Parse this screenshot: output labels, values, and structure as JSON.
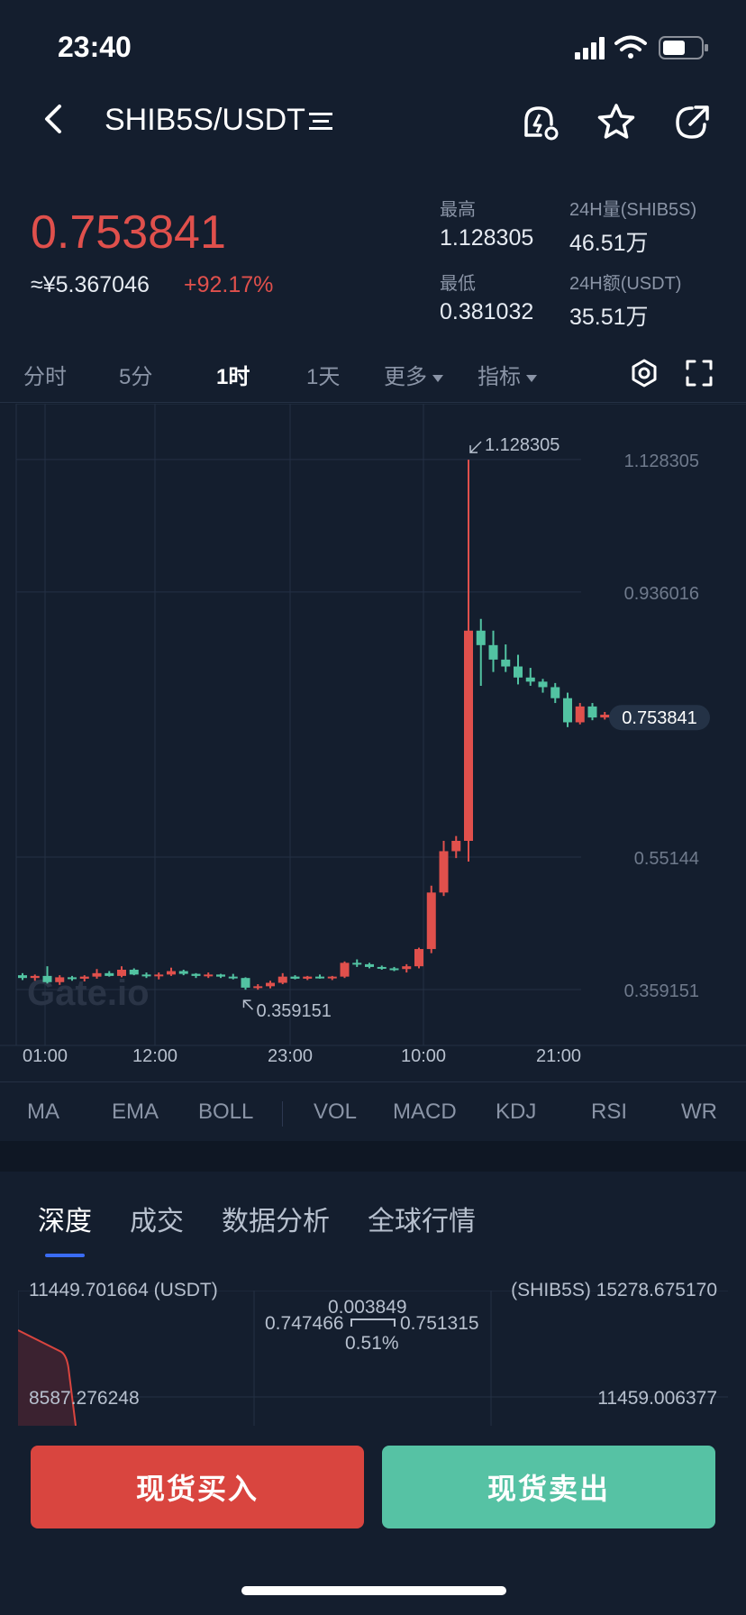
{
  "status_bar": {
    "time": "23:40"
  },
  "header": {
    "pair": "SHIB5S/USDT",
    "pair_suffix_icon": "menu-lines-icon"
  },
  "ticker": {
    "last_price": "0.753841",
    "cny_price": "≈¥5.367046",
    "change_pct": "+92.17%",
    "high_label": "最高",
    "high_value": "1.128305",
    "low_label": "最低",
    "low_value": "0.381032",
    "vol_label": "24H量(SHIB5S)",
    "vol_value": "46.51万",
    "amount_label": "24H额(USDT)",
    "amount_value": "35.51万"
  },
  "timeframes": [
    "分时",
    "5分",
    "1时",
    "1天",
    "更多",
    "指标"
  ],
  "active_timeframe": "1时",
  "chart_data": {
    "type": "candlestick",
    "watermark": "Gate.io",
    "x_ticks": [
      "01:00",
      "12:00",
      "23:00",
      "10:00",
      "21:00"
    ],
    "y_ticks": [
      "1.128305",
      "0.936016",
      "0.55144",
      "0.359151"
    ],
    "ylim": [
      0.32,
      1.17
    ],
    "max_label": "1.128305",
    "min_label": "0.359151",
    "current_price_label": "0.753841",
    "candles": [
      {
        "o": 0.38,
        "h": 0.383,
        "l": 0.373,
        "c": 0.376
      },
      {
        "o": 0.376,
        "h": 0.381,
        "l": 0.372,
        "c": 0.379
      },
      {
        "o": 0.379,
        "h": 0.393,
        "l": 0.368,
        "c": 0.37
      },
      {
        "o": 0.37,
        "h": 0.38,
        "l": 0.366,
        "c": 0.377
      },
      {
        "o": 0.377,
        "h": 0.379,
        "l": 0.372,
        "c": 0.375
      },
      {
        "o": 0.375,
        "h": 0.38,
        "l": 0.371,
        "c": 0.378
      },
      {
        "o": 0.378,
        "h": 0.389,
        "l": 0.375,
        "c": 0.383
      },
      {
        "o": 0.383,
        "h": 0.386,
        "l": 0.378,
        "c": 0.379
      },
      {
        "o": 0.379,
        "h": 0.393,
        "l": 0.377,
        "c": 0.388
      },
      {
        "o": 0.388,
        "h": 0.39,
        "l": 0.38,
        "c": 0.381
      },
      {
        "o": 0.381,
        "h": 0.384,
        "l": 0.376,
        "c": 0.379
      },
      {
        "o": 0.379,
        "h": 0.384,
        "l": 0.374,
        "c": 0.381
      },
      {
        "o": 0.381,
        "h": 0.391,
        "l": 0.379,
        "c": 0.386
      },
      {
        "o": 0.386,
        "h": 0.388,
        "l": 0.38,
        "c": 0.382
      },
      {
        "o": 0.382,
        "h": 0.383,
        "l": 0.376,
        "c": 0.379
      },
      {
        "o": 0.379,
        "h": 0.384,
        "l": 0.376,
        "c": 0.381
      },
      {
        "o": 0.381,
        "h": 0.382,
        "l": 0.376,
        "c": 0.378
      },
      {
        "o": 0.378,
        "h": 0.382,
        "l": 0.374,
        "c": 0.376
      },
      {
        "o": 0.376,
        "h": 0.377,
        "l": 0.359,
        "c": 0.362
      },
      {
        "o": 0.362,
        "h": 0.367,
        "l": 0.359,
        "c": 0.364
      },
      {
        "o": 0.364,
        "h": 0.372,
        "l": 0.361,
        "c": 0.369
      },
      {
        "o": 0.369,
        "h": 0.383,
        "l": 0.367,
        "c": 0.378
      },
      {
        "o": 0.378,
        "h": 0.38,
        "l": 0.374,
        "c": 0.375
      },
      {
        "o": 0.375,
        "h": 0.379,
        "l": 0.373,
        "c": 0.378
      },
      {
        "o": 0.378,
        "h": 0.381,
        "l": 0.375,
        "c": 0.376
      },
      {
        "o": 0.376,
        "h": 0.379,
        "l": 0.373,
        "c": 0.378
      },
      {
        "o": 0.378,
        "h": 0.4,
        "l": 0.376,
        "c": 0.398
      },
      {
        "o": 0.398,
        "h": 0.403,
        "l": 0.392,
        "c": 0.396
      },
      {
        "o": 0.396,
        "h": 0.398,
        "l": 0.39,
        "c": 0.392
      },
      {
        "o": 0.392,
        "h": 0.394,
        "l": 0.388,
        "c": 0.39
      },
      {
        "o": 0.39,
        "h": 0.392,
        "l": 0.386,
        "c": 0.389
      },
      {
        "o": 0.389,
        "h": 0.396,
        "l": 0.384,
        "c": 0.393
      },
      {
        "o": 0.393,
        "h": 0.42,
        "l": 0.39,
        "c": 0.418
      },
      {
        "o": 0.418,
        "h": 0.51,
        "l": 0.412,
        "c": 0.5
      },
      {
        "o": 0.5,
        "h": 0.575,
        "l": 0.495,
        "c": 0.56
      },
      {
        "o": 0.56,
        "h": 0.582,
        "l": 0.55,
        "c": 0.575
      },
      {
        "o": 0.575,
        "h": 1.128,
        "l": 0.545,
        "c": 0.88
      },
      {
        "o": 0.88,
        "h": 0.897,
        "l": 0.8,
        "c": 0.859
      },
      {
        "o": 0.859,
        "h": 0.88,
        "l": 0.82,
        "c": 0.838
      },
      {
        "o": 0.838,
        "h": 0.86,
        "l": 0.82,
        "c": 0.828
      },
      {
        "o": 0.828,
        "h": 0.845,
        "l": 0.802,
        "c": 0.812
      },
      {
        "o": 0.812,
        "h": 0.826,
        "l": 0.8,
        "c": 0.806
      },
      {
        "o": 0.806,
        "h": 0.81,
        "l": 0.79,
        "c": 0.798
      },
      {
        "o": 0.798,
        "h": 0.804,
        "l": 0.775,
        "c": 0.782
      },
      {
        "o": 0.782,
        "h": 0.79,
        "l": 0.74,
        "c": 0.747
      },
      {
        "o": 0.747,
        "h": 0.775,
        "l": 0.744,
        "c": 0.77
      },
      {
        "o": 0.77,
        "h": 0.775,
        "l": 0.75,
        "c": 0.754
      },
      {
        "o": 0.754,
        "h": 0.762,
        "l": 0.751,
        "c": 0.758
      },
      {
        "o": 0.758,
        "h": 0.761,
        "l": 0.751,
        "c": 0.753
      }
    ]
  },
  "indicators": [
    "MA",
    "EMA",
    "BOLL",
    "VOL",
    "MACD",
    "KDJ",
    "RSI",
    "WR"
  ],
  "sections": [
    "深度",
    "成交",
    "数据分析",
    "全球行情"
  ],
  "active_section": "深度",
  "depth": {
    "left_max": "11449.701664 (USDT)",
    "right_max": "(SHIB5S) 15278.675170",
    "left_mid": "8587.276248",
    "right_mid": "11459.006377",
    "spread": "0.003849",
    "bid": "0.747466",
    "ask": "0.751315",
    "spread_pct": "0.51%"
  },
  "actions": {
    "buy": "现货买入",
    "sell": "现货卖出"
  },
  "colors": {
    "up": "#52c3a2",
    "down": "#e0504c",
    "bg": "#141e2e"
  }
}
